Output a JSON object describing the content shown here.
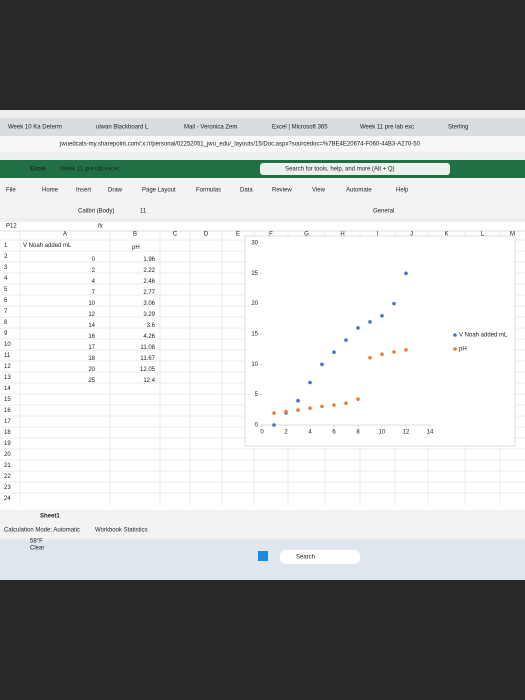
{
  "browser": {
    "tabs": [
      "Week 10 Ka Determ",
      "ulwan Blackboard L",
      "Mail - Veronica Zem",
      "Excel | Microsoft 365",
      "Week 11 pre lab exc",
      "Sterling"
    ],
    "url": "jwuedcats-my.sharepoint.com/:x:/r/personal/02252051_jwu_edu/_layouts/15/Doc.aspx?sourcedoc=%7BE4E20674-F060-44B3-A270-50"
  },
  "excel": {
    "app": "Excel",
    "file": "Week 11 pre lab excel",
    "search": "Search for tools, help, and more (Alt + Q)",
    "menu": [
      "File",
      "Home",
      "Insert",
      "Draw",
      "Page Layout",
      "Formulas",
      "Data",
      "Review",
      "View",
      "Automate",
      "Help"
    ],
    "font": "Calibri (Body)",
    "size": "11",
    "format": "General",
    "cell": "P12",
    "fx": "fx"
  },
  "sheet": {
    "columns": [
      "A",
      "B",
      "C",
      "D",
      "E",
      "F",
      "G",
      "H",
      "I",
      "J",
      "K",
      "L",
      "M"
    ],
    "row_numbers": [
      1,
      2,
      3,
      4,
      5,
      6,
      7,
      8,
      9,
      10,
      11,
      12,
      13,
      14,
      15,
      16,
      17,
      18,
      19,
      20,
      21,
      22,
      23,
      24
    ],
    "tab": "Sheet1",
    "status": [
      "Calculation Mode: Automatic",
      "Workbook Statistics"
    ]
  },
  "chart_data": {
    "type": "scatter",
    "x": [
      1,
      2,
      3,
      4,
      5,
      6,
      7,
      8,
      9,
      10,
      11,
      12
    ],
    "xlim": [
      0,
      14
    ],
    "xticks": [
      0,
      2,
      4,
      6,
      8,
      10,
      12,
      14
    ],
    "ylim": [
      0,
      30
    ],
    "yticks": [
      0,
      5,
      10,
      15,
      20,
      25,
      30
    ],
    "legend": "right",
    "series": [
      {
        "name": "V Noah added mL",
        "color": "#4472c4",
        "values": [
          0,
          2,
          4,
          7,
          10,
          12,
          14,
          16,
          17,
          18,
          20,
          25
        ]
      },
      {
        "name": "pH",
        "color": "#ed7d31",
        "values": [
          1.96,
          2.22,
          2.46,
          2.77,
          3.06,
          3.29,
          3.6,
          4.26,
          11.08,
          11.67,
          12.05,
          12.4
        ]
      }
    ]
  },
  "taskbar": {
    "search": "Search",
    "weather": [
      "58°F",
      "Clear"
    ]
  }
}
